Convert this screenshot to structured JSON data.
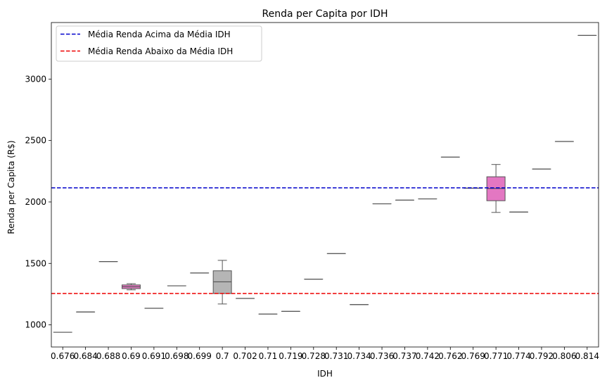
{
  "chart_data": {
    "type": "box",
    "title": "Renda per Capita por IDH",
    "xlabel": "IDH",
    "ylabel": "Renda per Capita (R$)",
    "categories": [
      "0.676",
      "0.684",
      "0.688",
      "0.69",
      "0.691",
      "0.698",
      "0.699",
      "0.7",
      "0.702",
      "0.71",
      "0.719",
      "0.728",
      "0.731",
      "0.734",
      "0.736",
      "0.737",
      "0.742",
      "0.762",
      "0.769",
      "0.771",
      "0.774",
      "0.792",
      "0.806",
      "0.814"
    ],
    "ylim": [
      820,
      3460
    ],
    "yticks": [
      1000,
      1500,
      2000,
      2500,
      3000
    ],
    "grid": false,
    "legend_position": "upper-left",
    "boxes": [
      {
        "category": "0.676",
        "min": 940,
        "q1": 940,
        "median": 940,
        "q3": 940,
        "max": 940,
        "color": "#6d6d6d"
      },
      {
        "category": "0.684",
        "min": 1105,
        "q1": 1105,
        "median": 1105,
        "q3": 1105,
        "max": 1105,
        "color": "#6d6d6d"
      },
      {
        "category": "0.688",
        "min": 1515,
        "q1": 1515,
        "median": 1515,
        "q3": 1515,
        "max": 1515,
        "color": "#6d6d6d"
      },
      {
        "category": "0.69",
        "min": 1285,
        "q1": 1295,
        "median": 1310,
        "q3": 1325,
        "max": 1335,
        "color": "#e377c2"
      },
      {
        "category": "0.691",
        "min": 1135,
        "q1": 1135,
        "median": 1135,
        "q3": 1135,
        "max": 1135,
        "color": "#6d6d6d"
      },
      {
        "category": "0.698",
        "min": 1318,
        "q1": 1318,
        "median": 1318,
        "q3": 1318,
        "max": 1318,
        "color": "#6d6d6d"
      },
      {
        "category": "0.699",
        "min": 1422,
        "q1": 1422,
        "median": 1422,
        "q3": 1422,
        "max": 1422,
        "color": "#6d6d6d"
      },
      {
        "category": "0.7",
        "min": 1170,
        "q1": 1255,
        "median": 1350,
        "q3": 1440,
        "max": 1525,
        "color": "#b5b5b5"
      },
      {
        "category": "0.702",
        "min": 1215,
        "q1": 1215,
        "median": 1215,
        "q3": 1215,
        "max": 1215,
        "color": "#6d6d6d"
      },
      {
        "category": "0.71",
        "min": 1088,
        "q1": 1088,
        "median": 1088,
        "q3": 1088,
        "max": 1088,
        "color": "#6d6d6d"
      },
      {
        "category": "0.719",
        "min": 1110,
        "q1": 1110,
        "median": 1110,
        "q3": 1110,
        "max": 1110,
        "color": "#6d6d6d"
      },
      {
        "category": "0.728",
        "min": 1372,
        "q1": 1372,
        "median": 1372,
        "q3": 1372,
        "max": 1372,
        "color": "#6d6d6d"
      },
      {
        "category": "0.731",
        "min": 1580,
        "q1": 1580,
        "median": 1580,
        "q3": 1580,
        "max": 1580,
        "color": "#6d6d6d"
      },
      {
        "category": "0.734",
        "min": 1165,
        "q1": 1165,
        "median": 1165,
        "q3": 1165,
        "max": 1165,
        "color": "#6d6d6d"
      },
      {
        "category": "0.736",
        "min": 1985,
        "q1": 1985,
        "median": 1985,
        "q3": 1985,
        "max": 1985,
        "color": "#6d6d6d"
      },
      {
        "category": "0.737",
        "min": 2015,
        "q1": 2015,
        "median": 2015,
        "q3": 2015,
        "max": 2015,
        "color": "#6d6d6d"
      },
      {
        "category": "0.742",
        "min": 2025,
        "q1": 2025,
        "median": 2025,
        "q3": 2025,
        "max": 2025,
        "color": "#6d6d6d"
      },
      {
        "category": "0.762",
        "min": 2365,
        "q1": 2365,
        "median": 2365,
        "q3": 2365,
        "max": 2365,
        "color": "#6d6d6d"
      },
      {
        "category": "0.769",
        "min": 2112,
        "q1": 2112,
        "median": 2112,
        "q3": 2112,
        "max": 2112,
        "color": "#6d6d6d"
      },
      {
        "category": "0.771",
        "min": 1915,
        "q1": 2010,
        "median": 2110,
        "q3": 2205,
        "max": 2305,
        "color": "#e377c2"
      },
      {
        "category": "0.774",
        "min": 1918,
        "q1": 1918,
        "median": 1918,
        "q3": 1918,
        "max": 1918,
        "color": "#6d6d6d"
      },
      {
        "category": "0.792",
        "min": 2268,
        "q1": 2268,
        "median": 2268,
        "q3": 2268,
        "max": 2268,
        "color": "#6d6d6d"
      },
      {
        "category": "0.806",
        "min": 2492,
        "q1": 2492,
        "median": 2492,
        "q3": 2492,
        "max": 2492,
        "color": "#6d6d6d"
      },
      {
        "category": "0.814",
        "min": 3355,
        "q1": 3355,
        "median": 3355,
        "q3": 3355,
        "max": 3355,
        "color": "#6d6d6d"
      }
    ],
    "hlines": [
      {
        "name": "Média Renda Acima da Média IDH",
        "value": 2115,
        "color": "#0000cc"
      },
      {
        "name": "Média Renda Abaixo da Média IDH",
        "value": 1255,
        "color": "#ee0000"
      }
    ]
  }
}
